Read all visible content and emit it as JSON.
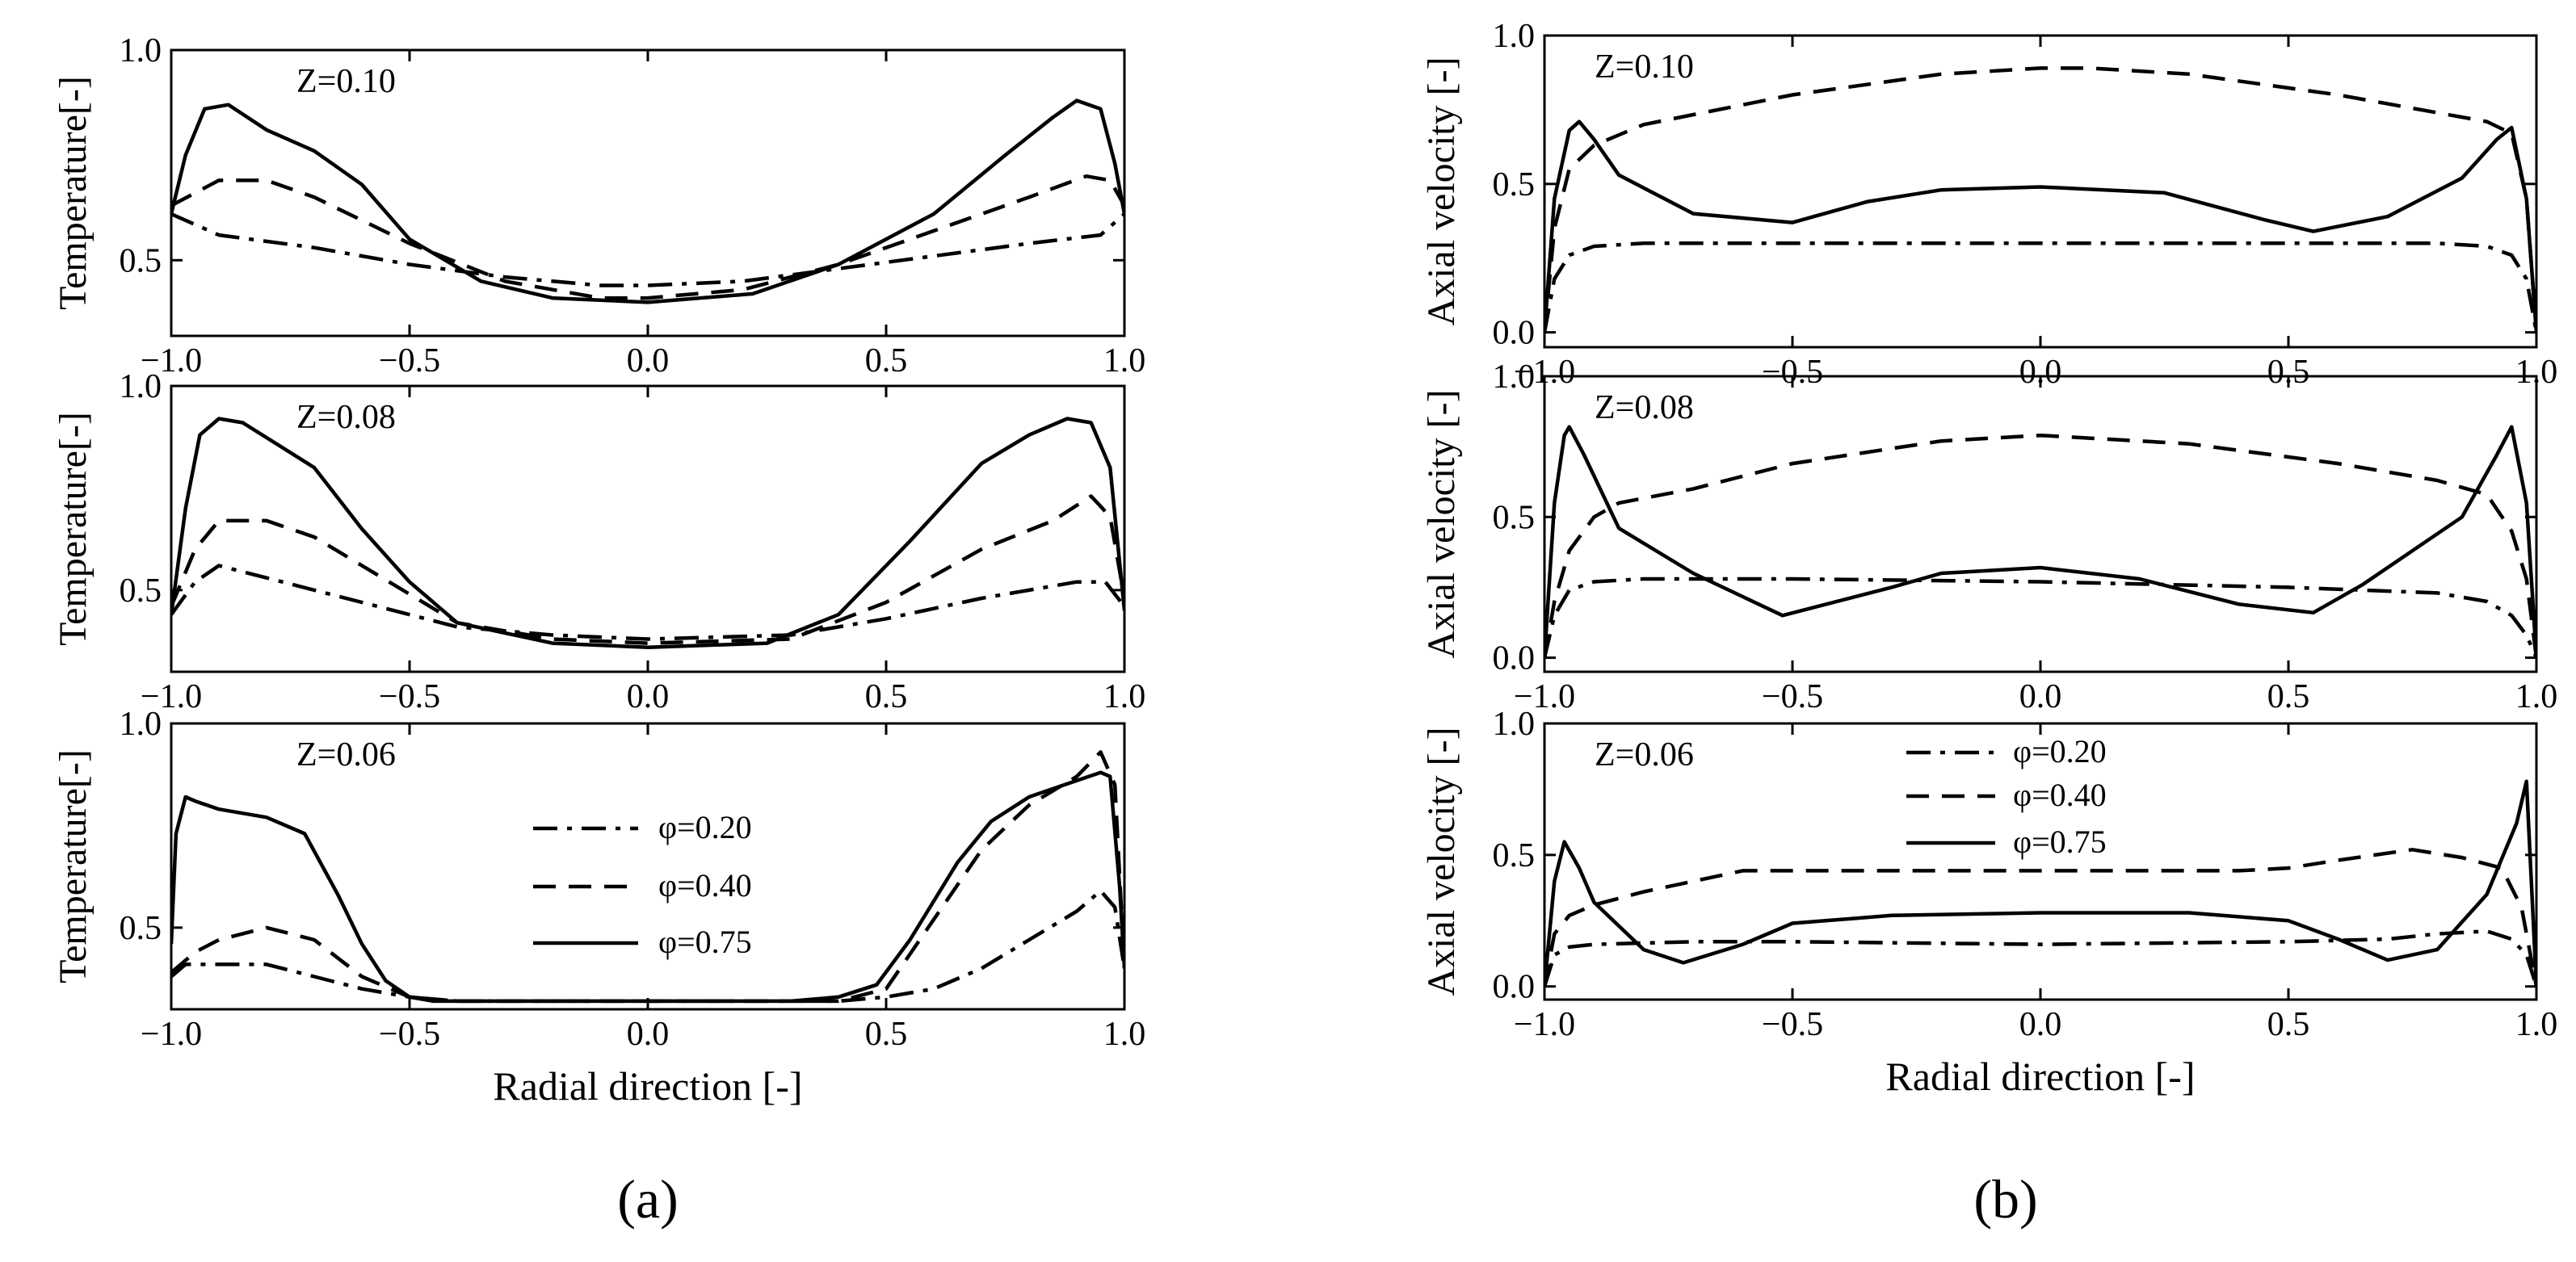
{
  "panel_labels": [
    "(a)",
    "(b)"
  ],
  "legend": [
    {
      "label": "φ=0.20",
      "style": "dashdot"
    },
    {
      "label": "φ=0.40",
      "style": "dashed"
    },
    {
      "label": "φ=0.75",
      "style": "solid"
    }
  ],
  "chart_data": [
    {
      "type": "line",
      "panel": "a",
      "row": 0,
      "title": "Z=0.10",
      "xlabel": "",
      "ylabel": "Temperature[-]",
      "xlim": [
        -1.0,
        1.0
      ],
      "ylim": [
        0.32,
        1.0
      ],
      "xticks": [
        -1.0,
        -0.5,
        0.0,
        0.5,
        1.0
      ],
      "xtick_labels": [
        "−1.0",
        "−0.5",
        "0.0",
        "0.5",
        "1.0"
      ],
      "yticks": [
        0.5,
        1.0
      ],
      "ytick_labels": [
        "0.5",
        "1.0"
      ],
      "series": [
        {
          "name": "φ=0.20",
          "style": "dashdot",
          "x": [
            -1.0,
            -0.9,
            -0.7,
            -0.5,
            -0.3,
            -0.1,
            0.0,
            0.2,
            0.4,
            0.6,
            0.8,
            0.95,
            1.0
          ],
          "y": [
            0.61,
            0.56,
            0.53,
            0.49,
            0.46,
            0.44,
            0.44,
            0.45,
            0.48,
            0.51,
            0.54,
            0.56,
            0.61
          ]
        },
        {
          "name": "φ=0.40",
          "style": "dashed",
          "x": [
            -1.0,
            -0.95,
            -0.9,
            -0.8,
            -0.7,
            -0.5,
            -0.3,
            -0.1,
            0.0,
            0.2,
            0.4,
            0.6,
            0.8,
            0.92,
            0.97,
            1.0
          ],
          "y": [
            0.63,
            0.66,
            0.69,
            0.69,
            0.65,
            0.54,
            0.45,
            0.41,
            0.41,
            0.43,
            0.49,
            0.57,
            0.65,
            0.7,
            0.69,
            0.63
          ]
        },
        {
          "name": "φ=0.75",
          "style": "solid",
          "x": [
            -1.0,
            -0.97,
            -0.93,
            -0.88,
            -0.8,
            -0.7,
            -0.6,
            -0.5,
            -0.35,
            -0.2,
            0.0,
            0.22,
            0.4,
            0.6,
            0.75,
            0.85,
            0.9,
            0.95,
            0.98,
            1.0
          ],
          "y": [
            0.61,
            0.75,
            0.86,
            0.87,
            0.81,
            0.76,
            0.68,
            0.55,
            0.45,
            0.41,
            0.4,
            0.42,
            0.49,
            0.61,
            0.75,
            0.84,
            0.88,
            0.86,
            0.73,
            0.61
          ]
        }
      ]
    },
    {
      "type": "line",
      "panel": "a",
      "row": 1,
      "title": "Z=0.08",
      "xlabel": "",
      "ylabel": "Temperature[-]",
      "xlim": [
        -1.0,
        1.0
      ],
      "ylim": [
        0.3,
        1.0
      ],
      "xticks": [
        -1.0,
        -0.5,
        0.0,
        0.5,
        1.0
      ],
      "xtick_labels": [
        "−1.0",
        "−0.5",
        "0.0",
        "0.5",
        "1.0"
      ],
      "yticks": [
        0.5,
        1.0
      ],
      "ytick_labels": [
        "0.5",
        "1.0"
      ],
      "series": [
        {
          "name": "φ=0.20",
          "style": "dashdot",
          "x": [
            -1.0,
            -0.95,
            -0.9,
            -0.8,
            -0.6,
            -0.4,
            -0.2,
            0.0,
            0.3,
            0.5,
            0.7,
            0.9,
            0.96,
            1.0
          ],
          "y": [
            0.44,
            0.52,
            0.56,
            0.53,
            0.47,
            0.41,
            0.39,
            0.38,
            0.39,
            0.43,
            0.48,
            0.52,
            0.52,
            0.46
          ]
        },
        {
          "name": "φ=0.40",
          "style": "dashed",
          "x": [
            -1.0,
            -0.95,
            -0.9,
            -0.8,
            -0.7,
            -0.5,
            -0.4,
            -0.2,
            0.0,
            0.3,
            0.5,
            0.7,
            0.85,
            0.93,
            0.97,
            1.0
          ],
          "y": [
            0.46,
            0.6,
            0.67,
            0.67,
            0.63,
            0.49,
            0.42,
            0.38,
            0.37,
            0.38,
            0.47,
            0.6,
            0.67,
            0.73,
            0.68,
            0.48
          ]
        },
        {
          "name": "φ=0.75",
          "style": "solid",
          "x": [
            -1.0,
            -0.97,
            -0.94,
            -0.9,
            -0.85,
            -0.7,
            -0.6,
            -0.5,
            -0.4,
            -0.2,
            0.0,
            0.25,
            0.4,
            0.55,
            0.7,
            0.8,
            0.88,
            0.93,
            0.97,
            1.0
          ],
          "y": [
            0.44,
            0.7,
            0.88,
            0.92,
            0.91,
            0.8,
            0.65,
            0.52,
            0.42,
            0.37,
            0.36,
            0.37,
            0.44,
            0.62,
            0.81,
            0.88,
            0.92,
            0.91,
            0.8,
            0.45
          ]
        }
      ]
    },
    {
      "type": "line",
      "panel": "a",
      "row": 2,
      "title": "Z=0.06",
      "xlabel": "Radial direction [-]",
      "ylabel": "Temperature[-]",
      "xlim": [
        -1.0,
        1.0
      ],
      "ylim": [
        0.3,
        1.0
      ],
      "xticks": [
        -1.0,
        -0.5,
        0.0,
        0.5,
        1.0
      ],
      "xtick_labels": [
        "−1.0",
        "−0.5",
        "0.0",
        "0.5",
        "1.0"
      ],
      "yticks": [
        0.5,
        1.0
      ],
      "ytick_labels": [
        "0.5",
        "1.0"
      ],
      "series": [
        {
          "name": "φ=0.20",
          "style": "dashdot",
          "x": [
            -1.0,
            -0.97,
            -0.9,
            -0.8,
            -0.7,
            -0.6,
            -0.5,
            -0.4,
            0.0,
            0.4,
            0.5,
            0.6,
            0.7,
            0.8,
            0.9,
            0.95,
            0.98,
            1.0
          ],
          "y": [
            0.38,
            0.41,
            0.41,
            0.41,
            0.38,
            0.35,
            0.33,
            0.32,
            0.32,
            0.32,
            0.33,
            0.35,
            0.4,
            0.47,
            0.54,
            0.59,
            0.55,
            0.4
          ]
        },
        {
          "name": "φ=0.40",
          "style": "dashed",
          "x": [
            -1.0,
            -0.95,
            -0.9,
            -0.8,
            -0.7,
            -0.6,
            -0.5,
            -0.4,
            0.0,
            0.4,
            0.5,
            0.6,
            0.7,
            0.8,
            0.9,
            0.95,
            0.98,
            1.0
          ],
          "y": [
            0.39,
            0.44,
            0.47,
            0.5,
            0.47,
            0.38,
            0.33,
            0.32,
            0.32,
            0.32,
            0.35,
            0.52,
            0.69,
            0.8,
            0.87,
            0.93,
            0.85,
            0.4
          ]
        },
        {
          "name": "φ=0.75",
          "style": "solid",
          "x": [
            -1.0,
            -0.99,
            -0.97,
            -0.95,
            -0.9,
            -0.8,
            -0.72,
            -0.65,
            -0.6,
            -0.55,
            -0.5,
            -0.45,
            -0.3,
            0.0,
            0.3,
            0.4,
            0.48,
            0.55,
            0.65,
            0.72,
            0.8,
            0.9,
            0.95,
            0.97,
            0.99,
            1.0
          ],
          "y": [
            0.46,
            0.73,
            0.82,
            0.81,
            0.79,
            0.77,
            0.73,
            0.58,
            0.46,
            0.37,
            0.33,
            0.32,
            0.32,
            0.32,
            0.32,
            0.33,
            0.36,
            0.47,
            0.66,
            0.76,
            0.82,
            0.86,
            0.88,
            0.87,
            0.6,
            0.4
          ]
        }
      ]
    },
    {
      "type": "line",
      "panel": "b",
      "row": 0,
      "title": "Z=0.10",
      "xlabel": "",
      "ylabel": "Axial velocity [-]",
      "xlim": [
        -1.0,
        1.0
      ],
      "ylim": [
        -0.05,
        1.0
      ],
      "xticks": [
        -1.0,
        -0.5,
        0.0,
        0.5,
        1.0
      ],
      "xtick_labels": [
        "−1.0",
        "−0.5",
        "0.0",
        "0.5",
        "1.0"
      ],
      "yticks": [
        0.0,
        0.5,
        1.0
      ],
      "ytick_labels": [
        "0.0",
        "0.5",
        "1.0"
      ],
      "series": [
        {
          "name": "φ=0.20",
          "style": "dashdot",
          "x": [
            -1.0,
            -0.98,
            -0.95,
            -0.9,
            -0.8,
            -0.5,
            0.0,
            0.5,
            0.8,
            0.9,
            0.95,
            0.98,
            1.0
          ],
          "y": [
            0.0,
            0.18,
            0.26,
            0.29,
            0.3,
            0.3,
            0.3,
            0.3,
            0.3,
            0.29,
            0.26,
            0.18,
            0.0
          ]
        },
        {
          "name": "φ=0.40",
          "style": "dashed",
          "x": [
            -1.0,
            -0.98,
            -0.95,
            -0.9,
            -0.8,
            -0.5,
            -0.2,
            0.0,
            0.1,
            0.3,
            0.6,
            0.8,
            0.9,
            0.95,
            0.98,
            1.0
          ],
          "y": [
            0.0,
            0.35,
            0.55,
            0.63,
            0.7,
            0.8,
            0.87,
            0.89,
            0.89,
            0.87,
            0.8,
            0.74,
            0.71,
            0.67,
            0.45,
            0.0
          ]
        },
        {
          "name": "φ=0.75",
          "style": "solid",
          "x": [
            -1.0,
            -0.98,
            -0.95,
            -0.93,
            -0.9,
            -0.85,
            -0.7,
            -0.5,
            -0.35,
            -0.2,
            0.0,
            0.25,
            0.45,
            0.55,
            0.7,
            0.85,
            0.92,
            0.95,
            0.98,
            1.0
          ],
          "y": [
            0.0,
            0.45,
            0.68,
            0.71,
            0.65,
            0.53,
            0.4,
            0.37,
            0.44,
            0.48,
            0.49,
            0.47,
            0.38,
            0.34,
            0.39,
            0.52,
            0.65,
            0.69,
            0.45,
            0.0
          ]
        }
      ]
    },
    {
      "type": "line",
      "panel": "b",
      "row": 1,
      "title": "Z=0.08",
      "xlabel": "",
      "ylabel": "Axial velocity [-]",
      "xlim": [
        -1.0,
        1.0
      ],
      "ylim": [
        -0.05,
        1.0
      ],
      "xticks": [
        -1.0,
        -0.5,
        0.0,
        0.5,
        1.0
      ],
      "xtick_labels": [
        "−1.0",
        "−0.5",
        "0.0",
        "0.5",
        "1.0"
      ],
      "yticks": [
        0.0,
        0.5,
        1.0
      ],
      "ytick_labels": [
        "0.0",
        "0.5",
        "1.0"
      ],
      "series": [
        {
          "name": "φ=0.20",
          "style": "dashdot",
          "x": [
            -1.0,
            -0.98,
            -0.95,
            -0.9,
            -0.8,
            -0.5,
            0.0,
            0.5,
            0.8,
            0.9,
            0.95,
            0.98,
            1.0
          ],
          "y": [
            0.0,
            0.15,
            0.24,
            0.27,
            0.28,
            0.28,
            0.27,
            0.25,
            0.23,
            0.2,
            0.15,
            0.08,
            0.0
          ]
        },
        {
          "name": "φ=0.40",
          "style": "dashed",
          "x": [
            -1.0,
            -0.98,
            -0.95,
            -0.9,
            -0.85,
            -0.7,
            -0.5,
            -0.2,
            0.0,
            0.3,
            0.6,
            0.8,
            0.9,
            0.95,
            0.98,
            1.0
          ],
          "y": [
            0.0,
            0.2,
            0.38,
            0.5,
            0.55,
            0.6,
            0.69,
            0.77,
            0.79,
            0.76,
            0.69,
            0.63,
            0.58,
            0.45,
            0.28,
            0.0
          ]
        },
        {
          "name": "φ=0.75",
          "style": "solid",
          "x": [
            -1.0,
            -0.98,
            -0.96,
            -0.95,
            -0.92,
            -0.85,
            -0.7,
            -0.52,
            -0.3,
            -0.2,
            0.0,
            0.2,
            0.4,
            0.55,
            0.65,
            0.85,
            0.92,
            0.95,
            0.98,
            1.0
          ],
          "y": [
            0.0,
            0.55,
            0.79,
            0.82,
            0.72,
            0.46,
            0.3,
            0.15,
            0.25,
            0.3,
            0.32,
            0.28,
            0.19,
            0.16,
            0.26,
            0.5,
            0.72,
            0.82,
            0.55,
            0.0
          ]
        }
      ]
    },
    {
      "type": "line",
      "panel": "b",
      "row": 2,
      "title": "Z=0.06",
      "xlabel": "Radial direction [-]",
      "ylabel": "Axial velocity [-]",
      "xlim": [
        -1.0,
        1.0
      ],
      "ylim": [
        -0.05,
        1.0
      ],
      "xticks": [
        -1.0,
        -0.5,
        0.0,
        0.5,
        1.0
      ],
      "xtick_labels": [
        "−1.0",
        "−0.5",
        "0.0",
        "0.5",
        "1.0"
      ],
      "yticks": [
        0.0,
        0.5,
        1.0
      ],
      "ytick_labels": [
        "0.0",
        "0.5",
        "1.0"
      ],
      "series": [
        {
          "name": "φ=0.20",
          "style": "dashdot",
          "x": [
            -1.0,
            -0.98,
            -0.95,
            -0.9,
            -0.7,
            -0.5,
            0.0,
            0.5,
            0.7,
            0.8,
            0.9,
            0.95,
            0.98,
            1.0
          ],
          "y": [
            0.0,
            0.12,
            0.15,
            0.16,
            0.17,
            0.17,
            0.16,
            0.17,
            0.18,
            0.2,
            0.21,
            0.18,
            0.12,
            0.0
          ]
        },
        {
          "name": "φ=0.40",
          "style": "dashed",
          "x": [
            -1.0,
            -0.98,
            -0.95,
            -0.9,
            -0.8,
            -0.6,
            -0.5,
            0.0,
            0.4,
            0.5,
            0.6,
            0.75,
            0.85,
            0.93,
            0.97,
            1.0
          ],
          "y": [
            0.0,
            0.2,
            0.27,
            0.31,
            0.36,
            0.44,
            0.44,
            0.44,
            0.44,
            0.45,
            0.48,
            0.52,
            0.49,
            0.45,
            0.3,
            0.0
          ]
        },
        {
          "name": "φ=0.75",
          "style": "solid",
          "x": [
            -1.0,
            -0.98,
            -0.96,
            -0.93,
            -0.9,
            -0.8,
            -0.72,
            -0.6,
            -0.5,
            -0.3,
            0.0,
            0.3,
            0.5,
            0.6,
            0.7,
            0.8,
            0.9,
            0.96,
            0.98,
            1.0
          ],
          "y": [
            0.0,
            0.4,
            0.55,
            0.45,
            0.32,
            0.14,
            0.09,
            0.16,
            0.24,
            0.27,
            0.28,
            0.28,
            0.25,
            0.18,
            0.1,
            0.14,
            0.35,
            0.62,
            0.78,
            0.0
          ]
        }
      ]
    }
  ]
}
